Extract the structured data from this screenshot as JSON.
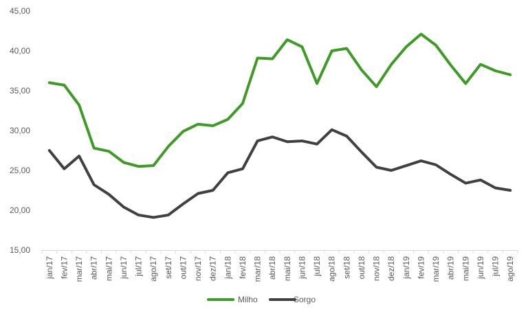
{
  "chart_data": {
    "type": "line",
    "title": "",
    "xlabel": "",
    "ylabel": "",
    "ylim": [
      15,
      45
    ],
    "y_ticks": [
      "15,00",
      "20,00",
      "25,00",
      "30,00",
      "35,00",
      "40,00",
      "45,00"
    ],
    "y_tick_values": [
      15,
      20,
      25,
      30,
      35,
      40,
      45
    ],
    "grid": false,
    "legend_position": "bottom",
    "categories": [
      "jan/17",
      "fev/17",
      "mar/17",
      "abr/17",
      "mai/17",
      "jun/17",
      "jul/17",
      "ago/17",
      "set/17",
      "out/17",
      "nov/17",
      "dez/17",
      "jan/18",
      "fev/18",
      "mar/18",
      "abr/18",
      "mai/18",
      "jun/18",
      "jul/18",
      "ago/18",
      "set/18",
      "out/18",
      "nov/18",
      "dez/18",
      "jan/19",
      "fev/19",
      "mar/19",
      "abr/19",
      "mai/19",
      "jun/19",
      "jul/19",
      "ago/19"
    ],
    "series": [
      {
        "name": "Milho",
        "color": "#3e9b26",
        "values": [
          36.0,
          35.7,
          33.2,
          27.8,
          27.4,
          26.0,
          25.5,
          25.6,
          28.0,
          29.9,
          30.8,
          30.6,
          31.4,
          33.4,
          39.1,
          39.0,
          41.4,
          40.5,
          35.9,
          40.0,
          40.3,
          37.6,
          35.5,
          38.3,
          40.5,
          42.1,
          40.7,
          38.2,
          35.9,
          38.3,
          37.5,
          37.0
        ]
      },
      {
        "name": "Sorgo",
        "color": "#404040",
        "values": [
          27.5,
          25.2,
          26.8,
          23.2,
          22.0,
          20.4,
          19.4,
          19.1,
          19.4,
          20.8,
          22.1,
          22.5,
          24.7,
          25.2,
          28.7,
          29.2,
          28.6,
          28.7,
          28.3,
          30.1,
          29.3,
          27.3,
          25.4,
          25.0,
          25.6,
          26.2,
          25.7,
          24.5,
          23.4,
          23.8,
          22.8,
          22.5
        ]
      }
    ]
  }
}
